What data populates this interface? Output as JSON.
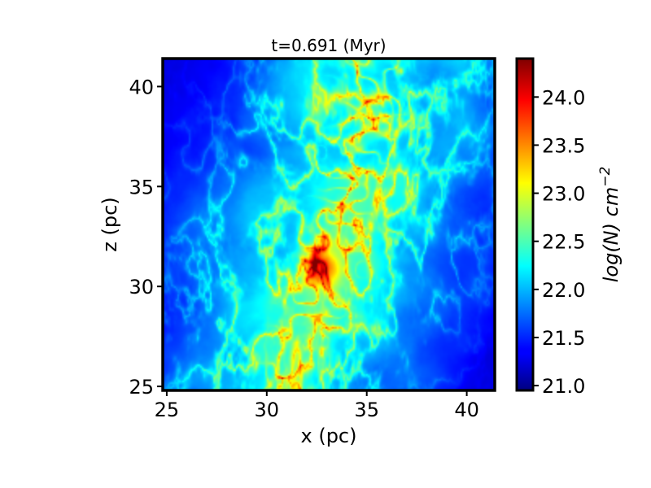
{
  "chart_data": {
    "type": "heatmap",
    "title": "t=0.691 (Myr)",
    "xlabel": "x (pc)",
    "ylabel": "z (pc)",
    "xlim": [
      24.8,
      41.4
    ],
    "ylim": [
      24.8,
      41.4
    ],
    "xticks": [
      25,
      30,
      35,
      40
    ],
    "yticks": [
      25,
      30,
      35,
      40
    ],
    "xtick_labels": [
      "25",
      "30",
      "35",
      "40"
    ],
    "ytick_labels": [
      "25",
      "30",
      "35",
      "40"
    ],
    "colormap": "jet",
    "colorbar": {
      "label": "log(N) cm",
      "label_exponent": "−2",
      "range": [
        20.95,
        24.4
      ],
      "ticks": [
        21.0,
        21.5,
        22.0,
        22.5,
        23.0,
        23.5,
        24.0
      ],
      "tick_labels": [
        "21.0",
        "21.5",
        "22.0",
        "22.5",
        "23.0",
        "23.5",
        "24.0"
      ]
    },
    "features": {
      "filament_path_pc": [
        [
          30.5,
          25.2
        ],
        [
          31.3,
          27.0
        ],
        [
          32.0,
          29.0
        ],
        [
          32.7,
          31.0
        ],
        [
          33.5,
          33.0
        ],
        [
          34.1,
          35.0
        ],
        [
          34.5,
          37.0
        ],
        [
          34.9,
          39.0
        ],
        [
          35.6,
          41.3
        ]
      ],
      "densest_hub_pc": [
        32.8,
        30.9
      ],
      "peak_log_column_density": 24.3,
      "background_log_column_density": 21.1,
      "cloud_log_column_density": 22.1
    },
    "grid": false,
    "legend": "none"
  }
}
